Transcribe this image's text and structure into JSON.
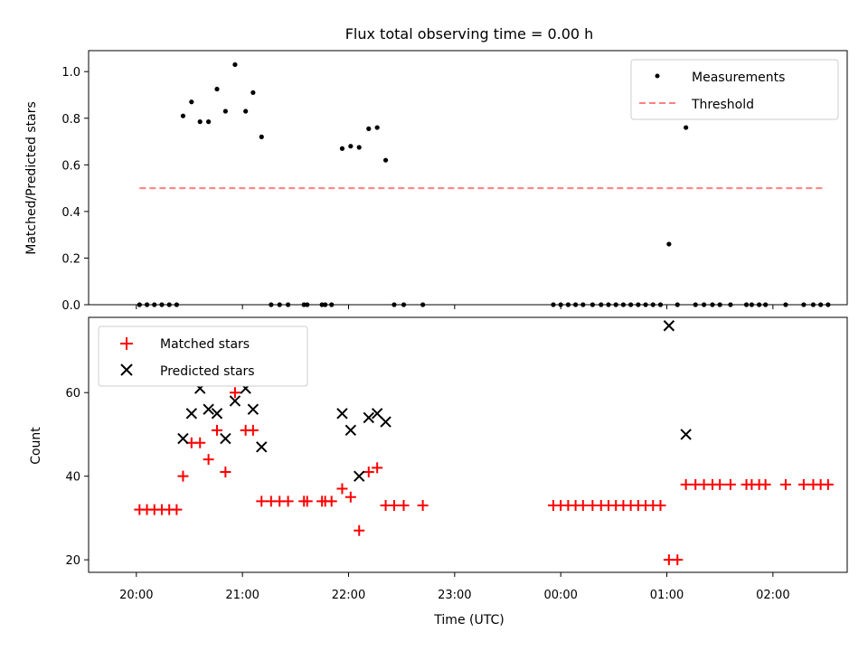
{
  "chart_data": [
    {
      "type": "scatter",
      "title": "Flux total observing time = 0.00 h",
      "xlabel": "",
      "ylabel": "Matched/Predicted stars",
      "xlim_hours": [
        19.55,
        26.7
      ],
      "ylim": [
        0,
        1.09
      ],
      "yticks": [
        "0.0",
        "0.2",
        "0.4",
        "0.6",
        "0.8",
        "1.0"
      ],
      "grid": false,
      "legend": "top-right",
      "threshold": {
        "name": "Threshold",
        "value": 0.5,
        "x_start": 20.03,
        "x_end": 26.5,
        "color": "#ff8080"
      },
      "series": [
        {
          "name": "Measurements",
          "color": "#000000",
          "marker": "dot",
          "points": [
            [
              20.03,
              0
            ],
            [
              20.1,
              0
            ],
            [
              20.17,
              0
            ],
            [
              20.24,
              0
            ],
            [
              20.31,
              0
            ],
            [
              20.38,
              0
            ],
            [
              20.44,
              0.81
            ],
            [
              20.52,
              0.87
            ],
            [
              20.6,
              0.785
            ],
            [
              20.68,
              0.785
            ],
            [
              20.76,
              0.925
            ],
            [
              20.84,
              0.83
            ],
            [
              20.93,
              1.03
            ],
            [
              21.03,
              0.83
            ],
            [
              21.1,
              0.91
            ],
            [
              21.18,
              0.72
            ],
            [
              21.27,
              0
            ],
            [
              21.35,
              0
            ],
            [
              21.43,
              0
            ],
            [
              21.58,
              0
            ],
            [
              21.61,
              0
            ],
            [
              21.75,
              0
            ],
            [
              21.78,
              0
            ],
            [
              21.84,
              0
            ],
            [
              21.94,
              0.67
            ],
            [
              22.02,
              0.68
            ],
            [
              22.1,
              0.675
            ],
            [
              22.19,
              0.755
            ],
            [
              22.27,
              0.76
            ],
            [
              22.35,
              0.62
            ],
            [
              22.43,
              0
            ],
            [
              22.52,
              0
            ],
            [
              22.7,
              0
            ],
            [
              23.93,
              0
            ],
            [
              24.0,
              0
            ],
            [
              24.07,
              0
            ],
            [
              24.14,
              0
            ],
            [
              24.21,
              0
            ],
            [
              24.3,
              0
            ],
            [
              24.38,
              0
            ],
            [
              24.45,
              0
            ],
            [
              24.52,
              0
            ],
            [
              24.59,
              0
            ],
            [
              24.66,
              0
            ],
            [
              24.73,
              0
            ],
            [
              24.8,
              0
            ],
            [
              24.87,
              0
            ],
            [
              24.94,
              0
            ],
            [
              25.02,
              0.26
            ],
            [
              25.1,
              0
            ],
            [
              25.18,
              0.76
            ],
            [
              25.27,
              0
            ],
            [
              25.35,
              0
            ],
            [
              25.43,
              0
            ],
            [
              25.5,
              0
            ],
            [
              25.6,
              0
            ],
            [
              25.75,
              0
            ],
            [
              25.8,
              0
            ],
            [
              25.87,
              0
            ],
            [
              25.93,
              0
            ],
            [
              26.12,
              0
            ],
            [
              26.29,
              0
            ],
            [
              26.38,
              0
            ],
            [
              26.45,
              0
            ],
            [
              26.52,
              0
            ]
          ]
        }
      ]
    },
    {
      "type": "scatter",
      "title": "",
      "xlabel": "Time (UTC)",
      "ylabel": "Count",
      "xlim_hours": [
        19.55,
        26.7
      ],
      "ylim": [
        17,
        78
      ],
      "yticks": [
        "20",
        "40",
        "60"
      ],
      "xticks": [
        "20:00",
        "21:00",
        "22:00",
        "23:00",
        "00:00",
        "01:00",
        "02:00"
      ],
      "grid": false,
      "legend": "top-left",
      "series": [
        {
          "name": "Matched stars",
          "color": "#ff0000",
          "marker": "plus",
          "points": [
            [
              20.03,
              32
            ],
            [
              20.1,
              32
            ],
            [
              20.17,
              32
            ],
            [
              20.24,
              32
            ],
            [
              20.31,
              32
            ],
            [
              20.38,
              32
            ],
            [
              20.44,
              40
            ],
            [
              20.52,
              48
            ],
            [
              20.6,
              48
            ],
            [
              20.68,
              44
            ],
            [
              20.76,
              51
            ],
            [
              20.84,
              41
            ],
            [
              20.93,
              60
            ],
            [
              21.03,
              51
            ],
            [
              21.1,
              51
            ],
            [
              21.18,
              34
            ],
            [
              21.27,
              34
            ],
            [
              21.35,
              34
            ],
            [
              21.43,
              34
            ],
            [
              21.58,
              34
            ],
            [
              21.61,
              34
            ],
            [
              21.75,
              34
            ],
            [
              21.78,
              34
            ],
            [
              21.84,
              34
            ],
            [
              21.94,
              37
            ],
            [
              22.02,
              35
            ],
            [
              22.1,
              27
            ],
            [
              22.19,
              41
            ],
            [
              22.27,
              42
            ],
            [
              22.35,
              33
            ],
            [
              22.43,
              33
            ],
            [
              22.52,
              33
            ],
            [
              22.7,
              33
            ],
            [
              23.93,
              33
            ],
            [
              24.0,
              33
            ],
            [
              24.07,
              33
            ],
            [
              24.14,
              33
            ],
            [
              24.21,
              33
            ],
            [
              24.3,
              33
            ],
            [
              24.38,
              33
            ],
            [
              24.45,
              33
            ],
            [
              24.52,
              33
            ],
            [
              24.59,
              33
            ],
            [
              24.66,
              33
            ],
            [
              24.73,
              33
            ],
            [
              24.8,
              33
            ],
            [
              24.87,
              33
            ],
            [
              24.94,
              33
            ],
            [
              25.02,
              20
            ],
            [
              25.1,
              20
            ],
            [
              25.18,
              38
            ],
            [
              25.27,
              38
            ],
            [
              25.35,
              38
            ],
            [
              25.43,
              38
            ],
            [
              25.5,
              38
            ],
            [
              25.6,
              38
            ],
            [
              25.75,
              38
            ],
            [
              25.8,
              38
            ],
            [
              25.87,
              38
            ],
            [
              25.93,
              38
            ],
            [
              26.12,
              38
            ],
            [
              26.29,
              38
            ],
            [
              26.38,
              38
            ],
            [
              26.45,
              38
            ],
            [
              26.52,
              38
            ]
          ]
        },
        {
          "name": "Predicted stars",
          "color": "#000000",
          "marker": "x",
          "points": [
            [
              20.44,
              49
            ],
            [
              20.52,
              55
            ],
            [
              20.6,
              61
            ],
            [
              20.68,
              56
            ],
            [
              20.76,
              55
            ],
            [
              20.84,
              49
            ],
            [
              20.93,
              58
            ],
            [
              21.03,
              61
            ],
            [
              21.1,
              56
            ],
            [
              21.18,
              47
            ],
            [
              21.94,
              55
            ],
            [
              22.02,
              51
            ],
            [
              22.1,
              40
            ],
            [
              22.19,
              54
            ],
            [
              22.27,
              55
            ],
            [
              22.35,
              53
            ],
            [
              25.02,
              76
            ],
            [
              25.18,
              50
            ]
          ]
        }
      ]
    }
  ]
}
